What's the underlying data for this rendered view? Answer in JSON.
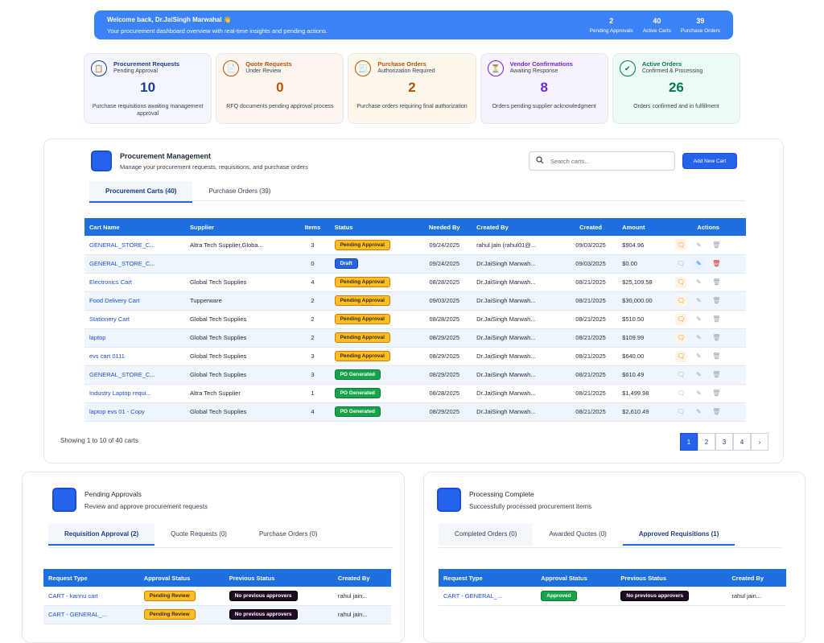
{
  "banner": {
    "welcome": "Welcome back, Dr.JaiSingh Marwahal 👋",
    "subtitle": "Your procurement dashboard overview with real-time insights and pending actions.",
    "stats": [
      {
        "value": "2",
        "label": "Pending Approvals"
      },
      {
        "value": "40",
        "label": "Active Carts"
      },
      {
        "value": "39",
        "label": "Purchase Orders"
      }
    ]
  },
  "kpis": [
    {
      "title": "Procurement Requests",
      "sub": "Pending Approval",
      "value": "10",
      "desc": "Purchase requisitions awaiting management approval",
      "color": "#1e3a8a",
      "bg": "#f3f6fd",
      "icon": "clipboard-icon"
    },
    {
      "title": "Quote Requests",
      "sub": "Under Review",
      "value": "0",
      "desc": "RFQ documents pending approval process",
      "color": "#b45309",
      "bg": "#fdf6ef",
      "icon": "document-icon"
    },
    {
      "title": "Purchase Orders",
      "sub": "Authorization Required",
      "value": "2",
      "desc": "Purchase orders requiring final authorization",
      "color": "#b45309",
      "bg": "#fdf7ec",
      "icon": "receipt-icon"
    },
    {
      "title": "Vendor Confirmations",
      "sub": "Awaiting Response",
      "value": "8",
      "desc": "Orders pending supplier acknowledgment",
      "color": "#6d28d9",
      "bg": "#f6f3fd",
      "icon": "hourglass-icon"
    },
    {
      "title": "Active Orders",
      "sub": "Confirmed & Processing",
      "value": "26",
      "desc": "Orders confirmed and in fulfillment",
      "color": "#047857",
      "bg": "#eefbf4",
      "icon": "check-circle-icon"
    }
  ],
  "procurement": {
    "title": "Procurement Management",
    "subtitle": "Manage your procurement requests, requisitions, and purchase orders",
    "search_placeholder": "Search carts...",
    "add_button": "Add New Cart",
    "tabs": [
      "Procurement Carts (40)",
      "Purchase Orders (39)"
    ],
    "columns": [
      "Cart Name",
      "Supplier",
      "Items",
      "Status",
      "Needed By",
      "Created By",
      "Created",
      "Amount",
      "Actions"
    ],
    "rows": [
      {
        "name": "GENERAL_STORE_C...",
        "supplier": "Altra Tech Supplier,Globa...",
        "items": "3",
        "status": "Pending Approval",
        "needed": "09/24/2025",
        "by": "rahul jain (rahul01@...",
        "created": "09/03/2025",
        "amount": "$904.96"
      },
      {
        "name": "GENERAL_STORE_C...",
        "supplier": "",
        "items": "0",
        "status": "Draft",
        "needed": "09/24/2025",
        "by": "Dr.JaiSingh Marwah...",
        "created": "09/03/2025",
        "amount": "$0.00"
      },
      {
        "name": "Electronics Cart",
        "supplier": "Global Tech Supplies",
        "items": "4",
        "status": "Pending Approval",
        "needed": "08/28/2025",
        "by": "Dr.JaiSingh Marwah...",
        "created": "08/21/2025",
        "amount": "$25,109.58"
      },
      {
        "name": "Food Delivery Cart",
        "supplier": "Tupperware",
        "items": "2",
        "status": "Pending Approval",
        "needed": "09/03/2025",
        "by": "Dr.JaiSingh Marwah...",
        "created": "08/21/2025",
        "amount": "$30,000.00"
      },
      {
        "name": "Stationery Cart",
        "supplier": "Global Tech Supplies",
        "items": "2",
        "status": "Pending Approval",
        "needed": "08/28/2025",
        "by": "Dr.JaiSingh Marwah...",
        "created": "08/21/2025",
        "amount": "$510.50"
      },
      {
        "name": "laptop",
        "supplier": "Global Tech Supplies",
        "items": "2",
        "status": "Pending Approval",
        "needed": "08/29/2025",
        "by": "Dr.JaiSingh Marwah...",
        "created": "08/21/2025",
        "amount": "$109.99"
      },
      {
        "name": "evs cart 0111",
        "supplier": "Global Tech Supplies",
        "items": "3",
        "status": "Pending Approval",
        "needed": "08/29/2025",
        "by": "Dr.JaiSingh Marwah...",
        "created": "08/21/2025",
        "amount": "$640.00"
      },
      {
        "name": "GENERAL_STORE_C...",
        "supplier": "Global Tech Supplies",
        "items": "3",
        "status": "PO Generated",
        "needed": "08/29/2025",
        "by": "Dr.JaiSingh Marwah...",
        "created": "08/21/2025",
        "amount": "$610.49"
      },
      {
        "name": "Industry Laptop requi...",
        "supplier": "Altra Tech Supplier",
        "items": "1",
        "status": "PO Generated",
        "needed": "08/28/2025",
        "by": "Dr.JaiSingh Marwah...",
        "created": "08/21/2025",
        "amount": "$1,499.98"
      },
      {
        "name": "laptop evs 01 - Copy",
        "supplier": "Global Tech Supplies",
        "items": "4",
        "status": "PO Generated",
        "needed": "08/29/2025",
        "by": "Dr.JaiSingh Marwah...",
        "created": "08/21/2025",
        "amount": "$2,610.49"
      }
    ],
    "showing": "Showing 1 to 10 of 40 carts",
    "pages": [
      "1",
      "2",
      "3",
      "4",
      "›"
    ]
  },
  "pending": {
    "title": "Pending Approvals",
    "subtitle": "Review and approve procurement requests",
    "tabs": [
      "Requisition Approval (2)",
      "Quote Requests (0)",
      "Purchase Orders (0)"
    ],
    "columns": [
      "Request Type",
      "Approval Status",
      "Previous Status",
      "Created By"
    ],
    "rows": [
      {
        "type": "CART - kannu cart",
        "status": "Pending Review",
        "prev": "No previous approvers",
        "by": "rahul jain..."
      },
      {
        "type": "CART - GENERAL_...",
        "status": "Pending Review",
        "prev": "No previous approvers",
        "by": "rahul jain..."
      }
    ]
  },
  "complete": {
    "title": "Processing Complete",
    "subtitle": "Successfully processed procurement items",
    "tabs": [
      "Completed Orders (0)",
      "Awarded Quotes (0)",
      "Approved Requisitions (1)"
    ],
    "columns": [
      "Request Type",
      "Approval Status",
      "Previous Status",
      "Created By"
    ],
    "rows": [
      {
        "type": "CART - GENERAL_...",
        "status": "Approved",
        "prev": "No previous approvers",
        "by": "rahul jain..."
      }
    ]
  }
}
